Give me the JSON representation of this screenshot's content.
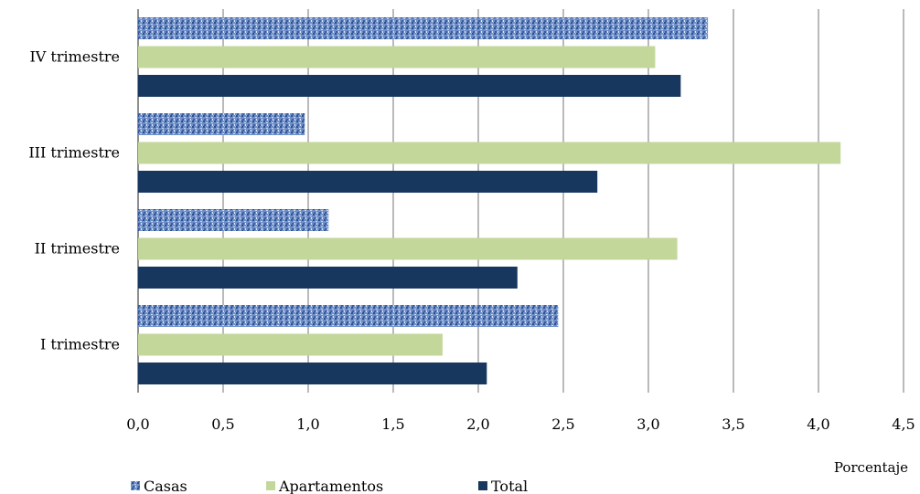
{
  "chart_data": {
    "type": "bar",
    "orientation": "horizontal",
    "categories": [
      "I trimestre",
      "II trimestre",
      "III trimestre",
      "IV trimestre"
    ],
    "series": [
      {
        "name": "Casas",
        "values": [
          2.47,
          1.12,
          0.98,
          3.35
        ],
        "color": "#4f6fae",
        "pattern": "textured-blue"
      },
      {
        "name": "Apartamentos",
        "values": [
          1.79,
          3.17,
          4.13,
          3.04
        ],
        "color": "#c4d79b"
      },
      {
        "name": "Total",
        "values": [
          2.05,
          2.23,
          2.7,
          3.19
        ],
        "color": "#17375e"
      }
    ],
    "xlim": [
      0,
      4.5
    ],
    "xticks": [
      "0,0",
      "0,5",
      "1,0",
      "1,5",
      "2,0",
      "2,5",
      "3,0",
      "3,5",
      "4,0",
      "4,5"
    ],
    "xlabel": "Porcentaje",
    "ylabel": "",
    "title": "",
    "grid": "vertical",
    "legend_position": "bottom-left"
  }
}
